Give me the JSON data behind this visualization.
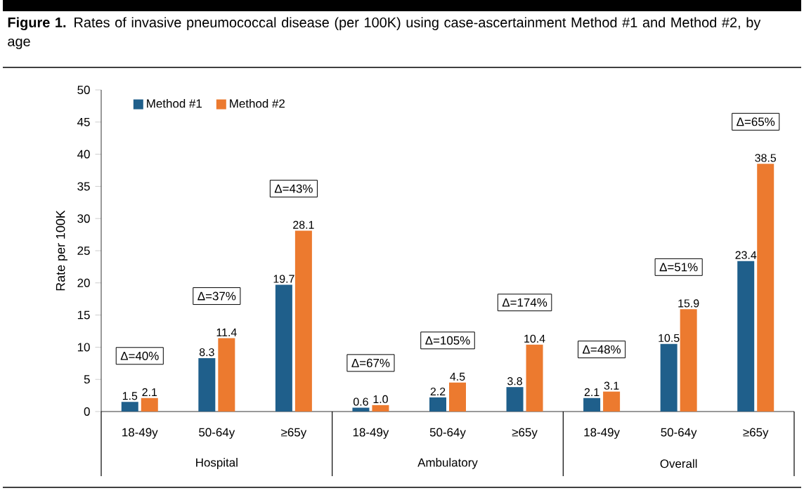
{
  "chart_data": {
    "type": "bar",
    "title": "**Figure 1.** Rates of invasive pneumococcal disease (per 100K) using case-ascertainment Method #1 and Method #2, by age",
    "ylabel": "Rate per 100K",
    "categories": [
      "18-49y",
      "50-64y",
      "≥65y",
      "18-49y",
      "50-64y",
      "≥65y",
      "18-49y",
      "50-64y",
      "≥65y"
    ],
    "series": [
      {
        "name": "Method #1",
        "color": "#1f5f8b",
        "values": [
          1.5,
          8.3,
          19.7,
          0.6,
          2.2,
          3.8,
          2.1,
          10.5,
          23.4
        ],
        "value_labels": [
          "1.5",
          "8.3",
          "19.7",
          "0.6",
          "2.2",
          "3.8",
          "2.1",
          "10.5",
          "23.4"
        ]
      },
      {
        "name": "Method #2",
        "color": "#ec7a2f",
        "values": [
          2.1,
          11.4,
          28.1,
          1.0,
          4.5,
          10.4,
          3.1,
          15.9,
          38.5
        ],
        "value_labels": [
          "2.1",
          "11.4",
          "28.1",
          "1.0",
          "4.5",
          "10.4",
          "3.1",
          "15.9",
          "38.5"
        ]
      }
    ],
    "ylim": [
      0,
      50
    ],
    "yticks": [
      0,
      5,
      10,
      15,
      20,
      25,
      30,
      35,
      40,
      45,
      50
    ],
    "grid": false,
    "legend": "top left",
    "annotations": [
      "Δ=40%",
      "Δ=37%",
      "Δ=43%",
      "Δ=67%",
      "Δ=105%",
      "Δ=174%",
      "Δ=48%",
      "Δ=51%",
      "Δ=65%",
      "Hospital",
      "Ambulatory",
      "Overall"
    ]
  }
}
